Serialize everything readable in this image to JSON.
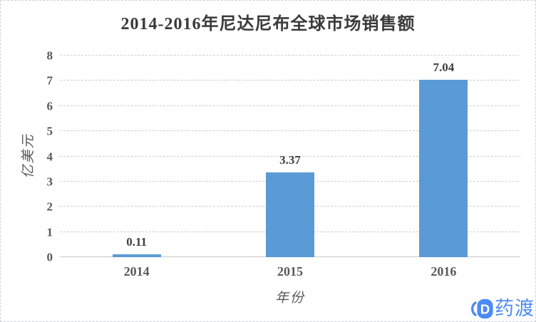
{
  "title": "2014-2016年尼达尼布全球市场销售额",
  "chart_data": {
    "type": "bar",
    "title": "2014-2016年尼达尼布全球市场销售额",
    "categories": [
      "2014",
      "2015",
      "2016"
    ],
    "values": [
      0.11,
      3.37,
      7.04
    ],
    "data_labels": [
      "0.11",
      "3.37",
      "7.04"
    ],
    "xlabel": "年份",
    "ylabel": "亿美元",
    "ylim": [
      0,
      8
    ],
    "yticks": [
      0,
      1,
      2,
      3,
      4,
      5,
      6,
      7,
      8
    ],
    "grid": "horizontal-dashed",
    "legend": "none",
    "bar_color": "#5B9BD5"
  },
  "colors": {
    "bar": "#5B9BD5",
    "gridline": "#CFCFCF",
    "axis_text": "#595959",
    "title_text": "#3A3A3A",
    "watermark_blue": "#4C8BF5"
  },
  "watermark": {
    "icon": "pharmacodia-d-logo-icon",
    "text": "药渡",
    "color": "#4C8BF5"
  }
}
